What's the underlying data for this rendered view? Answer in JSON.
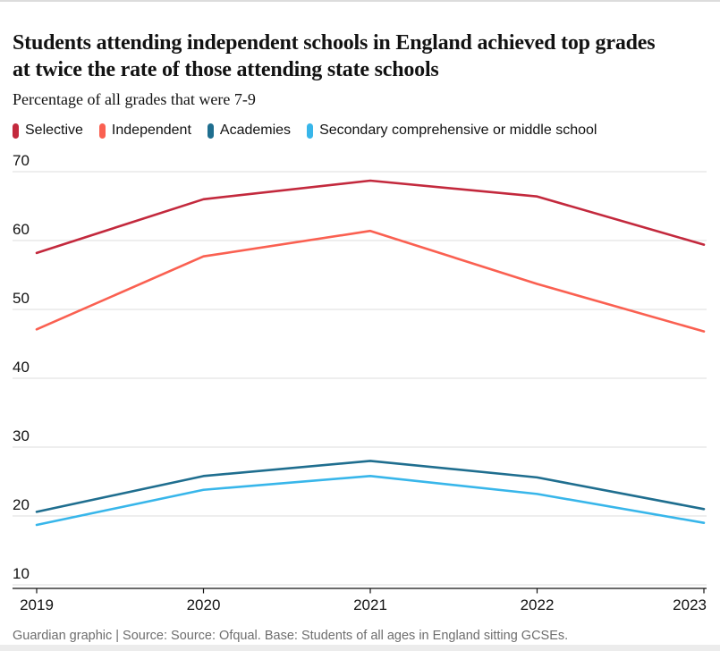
{
  "header": {
    "title": "Students attending independent schools in England achieved top grades at twice the rate of those attending state schools",
    "title_lines": [
      "Students attending independent schools in England achieved top grades",
      "at twice the rate of those attending state schools"
    ],
    "subtitle": "Percentage of all grades that were 7-9"
  },
  "colors": {
    "selective": "#c3293d",
    "independent": "#fa6051",
    "academies": "#1f6e8f",
    "secondary": "#38b6ea",
    "gridline": "#dcdcdc",
    "axis": "#121212",
    "tick_label": "#121212",
    "footer_text": "#6e6e6e"
  },
  "chart_data": {
    "type": "line",
    "title": "Students attending independent schools in England achieved top grades at twice the rate of those attending state schools",
    "subtitle": "Percentage of all grades that were 7-9",
    "x": [
      2019,
      2020,
      2021,
      2022,
      2023
    ],
    "xticklabels": [
      "2019",
      "2020",
      "2021",
      "2022",
      "2023"
    ],
    "yticks": [
      10,
      20,
      30,
      40,
      50,
      60,
      70
    ],
    "ylim": [
      10,
      70
    ],
    "grid": "horizontal",
    "legend_position": "top",
    "series": [
      {
        "name": "Selective",
        "color": "#c3293d",
        "values": [
          58.2,
          66.0,
          68.7,
          66.4,
          59.4
        ]
      },
      {
        "name": "Independent",
        "color": "#fa6051",
        "values": [
          47.1,
          57.7,
          61.4,
          53.7,
          46.8
        ]
      },
      {
        "name": "Academies",
        "color": "#1f6e8f",
        "values": [
          20.6,
          25.8,
          28.0,
          25.6,
          21.0
        ]
      },
      {
        "name": "Secondary comprehensive or middle school",
        "color": "#38b6ea",
        "values": [
          18.7,
          23.8,
          25.8,
          23.2,
          19.0
        ]
      }
    ]
  },
  "footer": {
    "credit": "Guardian graphic | Source: Source: Ofqual. Base: Students of all ages in England sitting GCSEs."
  }
}
